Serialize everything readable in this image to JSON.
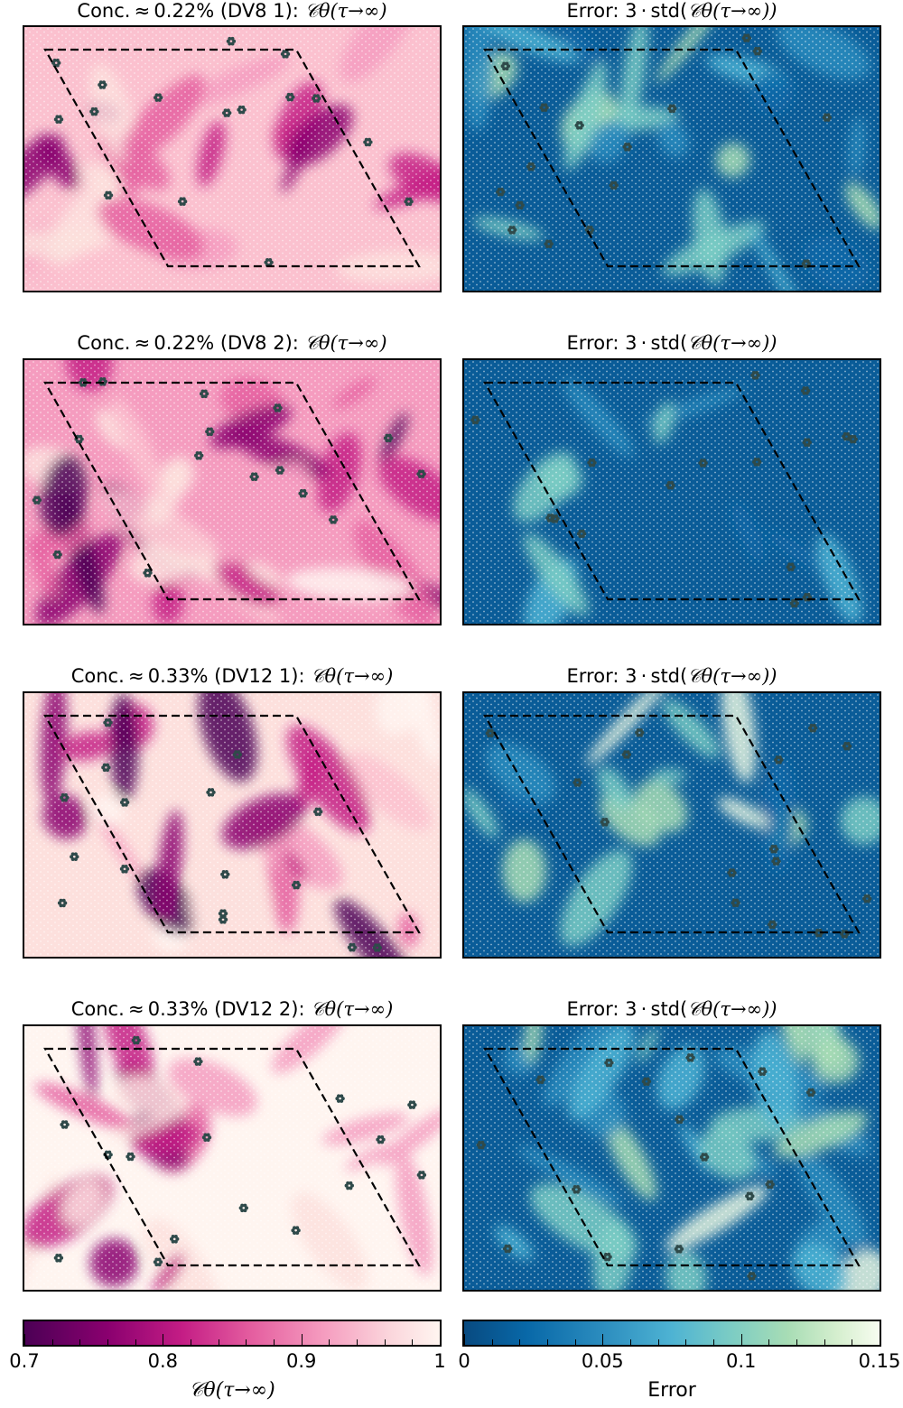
{
  "chart_data": [
    {
      "type": "heatmap",
      "title": "Conc.≈0.22% (DV8 1): 𝒞θ(τ→∞)",
      "title_text": "Conc. ≈ 0.22% (DV8 1): ",
      "title_symbol": "𝒞θ(τ→∞)",
      "colormap": "RdPu_r",
      "vmin": 0.7,
      "vmax": 1.0,
      "pattern": "mixed"
    },
    {
      "type": "heatmap",
      "title": "Error: 3·std(𝒞θ(τ→∞))",
      "title_text": "Error: 3 · std(",
      "title_symbol": "𝒞θ(τ→∞))",
      "colormap": "GnBu_r",
      "vmin": 0,
      "vmax": 0.15,
      "pattern": "high"
    },
    {
      "type": "heatmap",
      "title": "Conc.≈0.22% (DV8 2): 𝒞θ(τ→∞)",
      "title_text": "Conc. ≈ 0.22% (DV8 2): ",
      "title_symbol": "𝒞θ(τ→∞)",
      "colormap": "RdPu_r",
      "vmin": 0.7,
      "vmax": 1.0,
      "pattern": "dark"
    },
    {
      "type": "heatmap",
      "title": "Error: 3·std(𝒞θ(τ→∞))",
      "title_text": "Error: 3 · std(",
      "title_symbol": "𝒞θ(τ→∞))",
      "colormap": "GnBu_r",
      "vmin": 0,
      "vmax": 0.15,
      "pattern": "low"
    },
    {
      "type": "heatmap",
      "title": "Conc.≈0.33% (DV12 1): 𝒞θ(τ→∞)",
      "title_text": "Conc. ≈ 0.33% (DV12 1): ",
      "title_symbol": "𝒞θ(τ→∞)",
      "colormap": "RdPu_r",
      "vmin": 0.7,
      "vmax": 1.0,
      "pattern": "light"
    },
    {
      "type": "heatmap",
      "title": "Error: 3·std(𝒞θ(τ→∞))",
      "title_text": "Error: 3 · std(",
      "title_symbol": "𝒞θ(τ→∞))",
      "colormap": "GnBu_r",
      "vmin": 0,
      "vmax": 0.15,
      "pattern": "mid"
    },
    {
      "type": "heatmap",
      "title": "Conc.≈0.33% (DV12 2): 𝒞θ(τ→∞)",
      "title_text": "Conc. ≈ 0.33% (DV12 2): ",
      "title_symbol": "𝒞θ(τ→∞)",
      "colormap": "RdPu_r",
      "vmin": 0.7,
      "vmax": 1.0,
      "pattern": "verylight"
    },
    {
      "type": "heatmap",
      "title": "Error: 3·std(𝒞θ(τ→∞))",
      "title_text": "Error: 3 · std(",
      "title_symbol": "𝒞θ(τ→∞))",
      "colormap": "GnBu_r",
      "vmin": 0,
      "vmax": 0.15,
      "pattern": "veryhigh"
    }
  ],
  "colorbars": {
    "left": {
      "label": "𝒞θ(τ→∞)",
      "min": 0.7,
      "max": 1.0,
      "ticks": [
        "0.7",
        "0.8",
        "0.9",
        "1"
      ],
      "tick_values": [
        0.7,
        0.8,
        0.9,
        1.0
      ],
      "minor_step": 0.02
    },
    "right": {
      "label": "Error",
      "min": 0,
      "max": 0.15,
      "ticks": [
        "0",
        "0.05",
        "0.1",
        "0.15"
      ],
      "tick_values": [
        0,
        0.05,
        0.1,
        0.15
      ],
      "minor_step": 0.01
    }
  },
  "colors": {
    "defect_marker": "#2f4a4a",
    "supercell_outline": "#000000",
    "lattice_dots": "#ffffff"
  }
}
